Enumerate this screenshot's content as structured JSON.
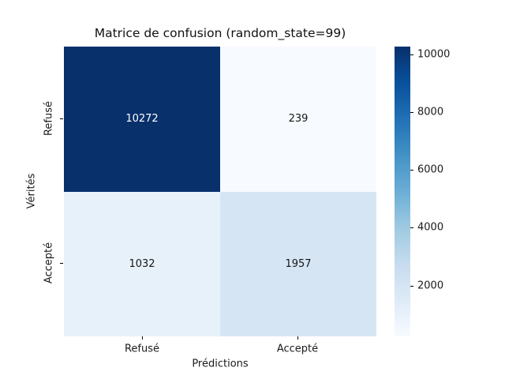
{
  "figure": {
    "background": "#ffffff"
  },
  "chart_data": {
    "type": "heatmap",
    "title": "Matrice de confusion (random_state=99)",
    "xlabel": "Prédictions",
    "ylabel": "Vérités",
    "x_categories": [
      "Refusé",
      "Accepté"
    ],
    "y_categories": [
      "Refusé",
      "Accepté"
    ],
    "values": [
      [
        10272,
        239
      ],
      [
        1032,
        1957
      ]
    ],
    "cell_colors": [
      [
        "#08306b",
        "#f7fbff"
      ],
      [
        "#e7f1fa",
        "#d5e5f4"
      ]
    ],
    "annot_colors": [
      [
        "#ffffff",
        "#161616"
      ],
      [
        "#161616",
        "#161616"
      ]
    ],
    "colormap": "Blues",
    "grid": false,
    "legend": false,
    "colorbar": {
      "vmin": 239,
      "vmax": 10272,
      "ticks": [
        2000,
        4000,
        6000,
        8000,
        10000
      ],
      "gradient_stops": [
        "#f7fbff",
        "#deebf7",
        "#c6dbef",
        "#9ecae1",
        "#6baed6",
        "#4292c6",
        "#2171b5",
        "#08519c",
        "#08306b"
      ]
    }
  }
}
